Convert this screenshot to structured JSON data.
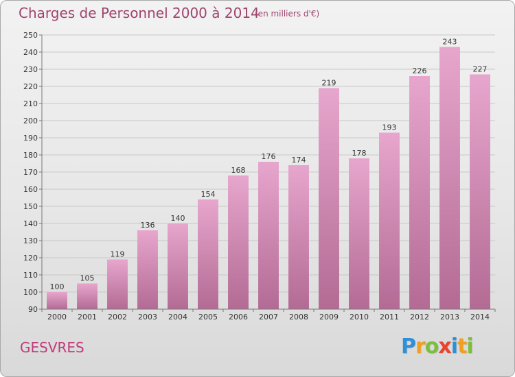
{
  "header": {
    "title": "Charges de Personnel 2000 à 2014",
    "subtitle": "(en milliers d'€)"
  },
  "footer": {
    "place": "GESVRES",
    "logo": {
      "text": "Proxiti",
      "letters": [
        {
          "char": "P",
          "color": "#2f8fd8"
        },
        {
          "char": "r",
          "color": "#f0a020"
        },
        {
          "char": "o",
          "color": "#7bbf3a"
        },
        {
          "char": "x",
          "color": "#e8442c"
        },
        {
          "char": "i",
          "color": "#2f8fd8"
        },
        {
          "char": "t",
          "color": "#f0a020"
        },
        {
          "char": "i",
          "color": "#7bbf3a"
        }
      ]
    }
  },
  "colors": {
    "bar_top": "#e7a6cd",
    "bar_bottom": "#b36b94",
    "title": "#a0446e",
    "place": "#c03a7a"
  },
  "chart_data": {
    "type": "bar",
    "title": "Charges de Personnel 2000 à 2014",
    "subtitle": "(en milliers d'€)",
    "categories": [
      "2000",
      "2001",
      "2002",
      "2003",
      "2004",
      "2005",
      "2006",
      "2007",
      "2008",
      "2009",
      "2010",
      "2011",
      "2012",
      "2013",
      "2014"
    ],
    "values": [
      100,
      105,
      119,
      136,
      140,
      154,
      168,
      176,
      174,
      219,
      178,
      193,
      226,
      243,
      227
    ],
    "ylim": [
      90,
      250
    ],
    "yticks": [
      90,
      100,
      110,
      120,
      130,
      140,
      150,
      160,
      170,
      180,
      190,
      200,
      210,
      220,
      230,
      240,
      250
    ],
    "grid": true,
    "data_labels": true
  }
}
